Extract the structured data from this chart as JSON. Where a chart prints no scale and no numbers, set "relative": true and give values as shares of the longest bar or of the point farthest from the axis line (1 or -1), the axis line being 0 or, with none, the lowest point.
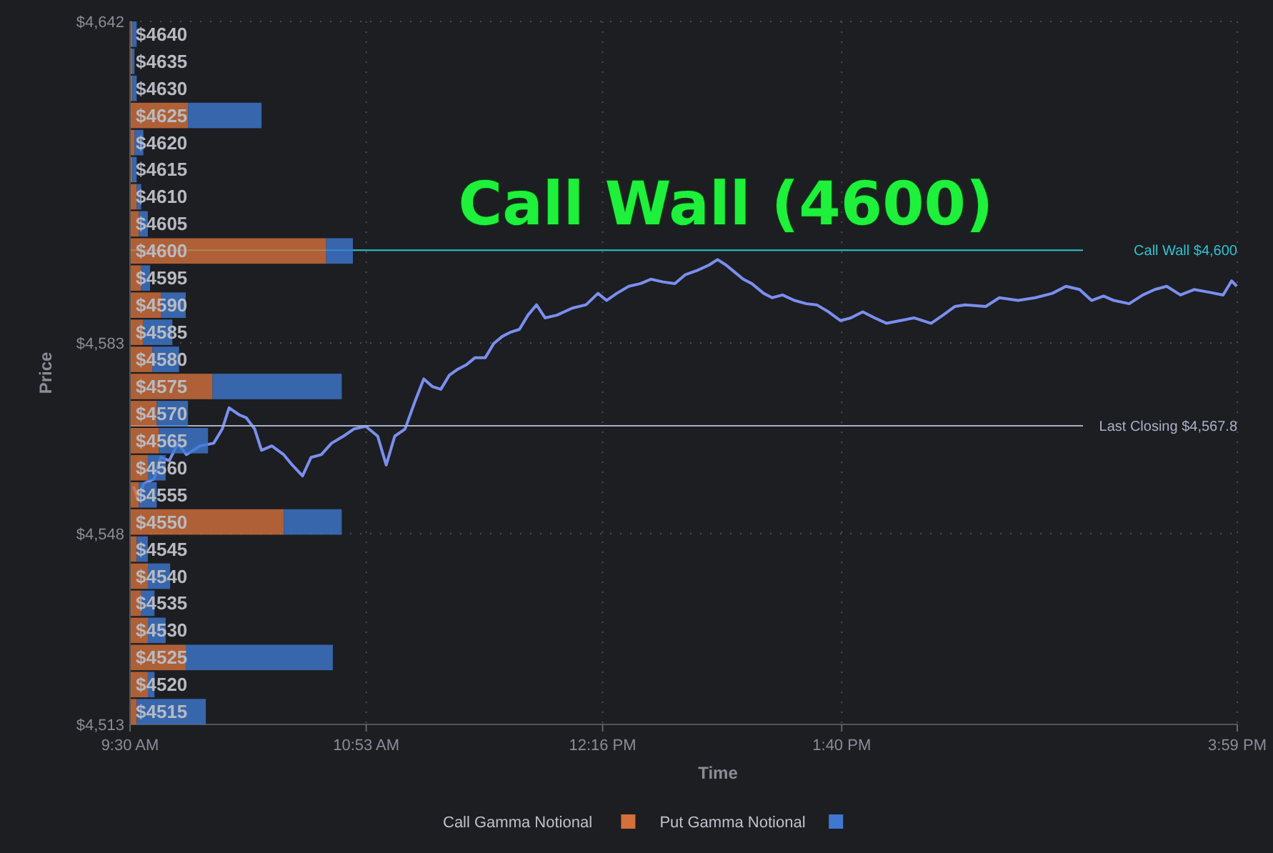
{
  "chart_data": [
    {
      "type": "line",
      "title": "Call Wall (4600)",
      "xlabel": "Time",
      "ylabel": "Price",
      "xlim": [
        9.5,
        15.983
      ],
      "ylim": [
        4513,
        4642
      ],
      "xticks": [
        {
          "value": 9.5,
          "label": "9:30 AM"
        },
        {
          "value": 10.883,
          "label": "10:53 AM"
        },
        {
          "value": 12.267,
          "label": "12:16 PM"
        },
        {
          "value": 13.667,
          "label": "1:40 PM"
        },
        {
          "value": 15.983,
          "label": "3:59 PM"
        }
      ],
      "yticks": [
        {
          "value": 4513,
          "label": "$4,513"
        },
        {
          "value": 4548,
          "label": "$4,548"
        },
        {
          "value": 4583,
          "label": "$4,583"
        },
        {
          "value": 4642,
          "label": "$4,642"
        }
      ],
      "grid": true,
      "line_style": "solid",
      "marker": "none",
      "x": [
        9.52,
        9.55,
        9.58,
        9.64,
        9.68,
        9.73,
        9.78,
        9.83,
        9.91,
        9.99,
        10.04,
        10.08,
        10.14,
        10.18,
        10.23,
        10.27,
        10.33,
        10.4,
        10.45,
        10.51,
        10.56,
        10.62,
        10.68,
        10.75,
        10.81,
        10.88,
        10.95,
        11.0,
        11.05,
        11.11,
        11.17,
        11.22,
        11.27,
        11.32,
        11.37,
        11.42,
        11.47,
        11.52,
        11.58,
        11.63,
        11.68,
        11.73,
        11.78,
        11.83,
        11.88,
        11.93,
        12.0,
        12.09,
        12.17,
        12.24,
        12.29,
        12.35,
        12.42,
        12.49,
        12.55,
        12.62,
        12.69,
        12.75,
        12.82,
        12.89,
        12.94,
        12.99,
        13.04,
        13.09,
        13.14,
        13.21,
        13.26,
        13.32,
        13.39,
        13.46,
        13.52,
        13.59,
        13.66,
        13.72,
        13.79,
        13.86,
        13.93,
        14.01,
        14.09,
        14.19,
        14.26,
        14.33,
        14.39,
        14.51,
        14.59,
        14.7,
        14.8,
        14.9,
        14.98,
        15.06,
        15.13,
        15.2,
        15.26,
        15.35,
        15.43,
        15.5,
        15.57,
        15.65,
        15.73,
        15.82,
        15.9,
        15.95,
        15.98
      ],
      "series": [
        {
          "color": "#7b8ff0",
          "values": [
            4556.7,
            4554.1,
            4557.2,
            4558.0,
            4562.0,
            4561.4,
            4564.6,
            4562.5,
            4564.1,
            4564.6,
            4567.2,
            4571.1,
            4569.8,
            4569.3,
            4567.2,
            4563.3,
            4564.1,
            4562.5,
            4560.6,
            4558.6,
            4562.0,
            4562.5,
            4564.6,
            4565.9,
            4567.2,
            4567.7,
            4565.9,
            4560.6,
            4565.9,
            4567.2,
            4572.4,
            4576.4,
            4575.0,
            4574.5,
            4577.1,
            4578.2,
            4579.0,
            4580.3,
            4580.3,
            4582.9,
            4584.2,
            4585.0,
            4585.5,
            4588.1,
            4590.0,
            4587.6,
            4588.1,
            4589.4,
            4590.0,
            4592.1,
            4590.8,
            4592.1,
            4593.4,
            4593.9,
            4594.7,
            4594.2,
            4593.9,
            4595.5,
            4596.3,
            4597.3,
            4598.3,
            4597.3,
            4596.0,
            4594.7,
            4593.9,
            4592.1,
            4591.3,
            4591.8,
            4590.8,
            4590.2,
            4590.0,
            4588.7,
            4587.1,
            4587.6,
            4588.7,
            4587.6,
            4586.6,
            4587.1,
            4587.6,
            4586.6,
            4588.1,
            4589.7,
            4590.0,
            4589.7,
            4591.3,
            4590.8,
            4591.3,
            4592.1,
            4593.4,
            4592.8,
            4590.8,
            4591.6,
            4590.8,
            4590.2,
            4591.8,
            4592.8,
            4593.4,
            4591.8,
            4592.8,
            4592.3,
            4591.8,
            4594.4,
            4593.4
          ]
        }
      ],
      "ref_lines": [
        {
          "axis": "y",
          "value": 4600,
          "label": "Call Wall $4,600",
          "color": "#2ec4d0"
        },
        {
          "axis": "y",
          "value": 4567.8,
          "label": "Last Closing $4,567.8",
          "color": "#aab0c8"
        }
      ]
    },
    {
      "type": "bar",
      "orientation": "horizontal",
      "stacked": true,
      "relative": true,
      "legend": "bottom",
      "categories": [
        "$4640",
        "$4635",
        "$4630",
        "$4625",
        "$4620",
        "$4615",
        "$4610",
        "$4605",
        "$4600",
        "$4595",
        "$4590",
        "$4585",
        "$4580",
        "$4575",
        "$4570",
        "$4565",
        "$4560",
        "$4555",
        "$4550",
        "$4545",
        "$4540",
        "$4535",
        "$4530",
        "$4525",
        "$4520",
        "$4515"
      ],
      "series": [
        {
          "name": "Call Gamma Notional",
          "color": "#d4703c",
          "values": [
            0.01,
            0.01,
            0.01,
            0.26,
            0.02,
            0.01,
            0.03,
            0.04,
            0.88,
            0.05,
            0.14,
            0.06,
            0.1,
            0.37,
            0.12,
            0.13,
            0.08,
            0.04,
            0.69,
            0.03,
            0.08,
            0.05,
            0.08,
            0.25,
            0.08,
            0.03
          ]
        },
        {
          "name": "Put Gamma Notional",
          "color": "#3f78d0",
          "values": [
            0.02,
            0.01,
            0.02,
            0.33,
            0.04,
            0.02,
            0.02,
            0.04,
            0.12,
            0.04,
            0.11,
            0.13,
            0.12,
            0.58,
            0.14,
            0.22,
            0.08,
            0.08,
            0.26,
            0.05,
            0.1,
            0.06,
            0.08,
            0.66,
            0.03,
            0.31
          ]
        }
      ]
    }
  ]
}
